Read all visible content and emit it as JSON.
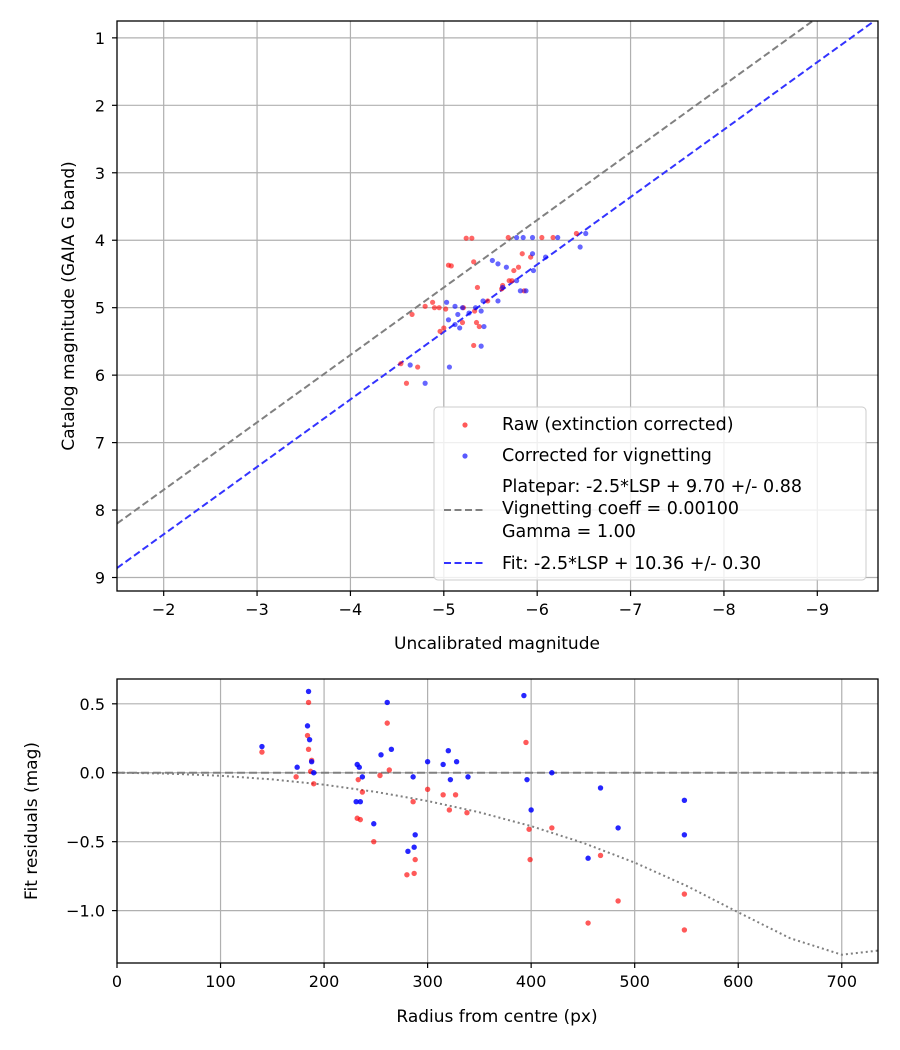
{
  "chart_data": [
    {
      "type": "scatter",
      "xlabel": "Uncalibrated magnitude",
      "ylabel": "Catalog magnitude (GAIA G band)",
      "xlim": [
        -1.5,
        -9.65
      ],
      "ylim": [
        9.2,
        0.75
      ],
      "x_inverted": true,
      "y_inverted": true,
      "grid": true,
      "legend_position": "lower-right",
      "xticks": [
        -2,
        -3,
        -4,
        -5,
        -6,
        -7,
        -8,
        -9
      ],
      "xtick_labels": [
        "−2",
        "−3",
        "−4",
        "−5",
        "−6",
        "−7",
        "−8",
        "−9"
      ],
      "yticks": [
        1,
        2,
        3,
        4,
        5,
        6,
        7,
        8,
        9
      ],
      "ytick_labels": [
        "1",
        "2",
        "3",
        "4",
        "5",
        "6",
        "7",
        "8",
        "9"
      ],
      "series": [
        {
          "name": "Raw (extinction corrected)",
          "kind": "points",
          "color": "#ff0000",
          "points": [
            [
              -5.24,
              3.97
            ],
            [
              -5.3,
              3.97
            ],
            [
              -5.69,
              3.96
            ],
            [
              -6.05,
              3.96
            ],
            [
              -6.17,
              3.96
            ],
            [
              -6.42,
              3.9
            ],
            [
              -5.84,
              4.2
            ],
            [
              -5.93,
              4.25
            ],
            [
              -5.32,
              4.32
            ],
            [
              -5.8,
              4.4
            ],
            [
              -5.75,
              4.45
            ],
            [
              -5.05,
              4.37
            ],
            [
              -5.08,
              4.38
            ],
            [
              -5.7,
              4.6
            ],
            [
              -5.63,
              4.67
            ],
            [
              -5.73,
              4.6
            ],
            [
              -5.36,
              4.7
            ],
            [
              -5.62,
              4.72
            ],
            [
              -5.86,
              4.75
            ],
            [
              -5.47,
              4.9
            ],
            [
              -4.88,
              4.92
            ],
            [
              -4.8,
              4.98
            ],
            [
              -4.9,
              5.0
            ],
            [
              -4.95,
              5.0
            ],
            [
              -5.02,
              5.02
            ],
            [
              -5.21,
              5.0
            ],
            [
              -5.33,
              5.05
            ],
            [
              -4.66,
              5.1
            ],
            [
              -5.35,
              5.22
            ],
            [
              -5.2,
              5.22
            ],
            [
              -5.38,
              5.28
            ],
            [
              -5.0,
              5.3
            ],
            [
              -4.96,
              5.35
            ],
            [
              -5.32,
              5.56
            ],
            [
              -4.54,
              5.83
            ],
            [
              -4.72,
              5.88
            ],
            [
              -4.6,
              6.12
            ]
          ]
        },
        {
          "name": "Corrected for vignetting",
          "kind": "points",
          "color": "#0000ff",
          "points": [
            [
              -5.78,
              3.96
            ],
            [
              -5.85,
              3.96
            ],
            [
              -5.95,
              3.96
            ],
            [
              -6.22,
              3.96
            ],
            [
              -6.52,
              3.9
            ],
            [
              -5.95,
              4.2
            ],
            [
              -6.09,
              4.25
            ],
            [
              -5.96,
              4.45
            ],
            [
              -6.46,
              4.1
            ],
            [
              -5.52,
              4.3
            ],
            [
              -5.58,
              4.35
            ],
            [
              -5.67,
              4.4
            ],
            [
              -5.78,
              4.6
            ],
            [
              -5.63,
              4.7
            ],
            [
              -5.82,
              4.75
            ],
            [
              -5.88,
              4.75
            ],
            [
              -5.42,
              4.9
            ],
            [
              -5.58,
              4.9
            ],
            [
              -5.03,
              4.92
            ],
            [
              -5.12,
              4.98
            ],
            [
              -5.2,
              5.0
            ],
            [
              -5.34,
              5.0
            ],
            [
              -5.4,
              5.05
            ],
            [
              -5.27,
              5.08
            ],
            [
              -5.15,
              5.1
            ],
            [
              -5.05,
              5.18
            ],
            [
              -5.12,
              5.25
            ],
            [
              -5.43,
              5.28
            ],
            [
              -5.17,
              5.3
            ],
            [
              -5.4,
              5.57
            ],
            [
              -4.64,
              5.85
            ],
            [
              -5.06,
              5.88
            ],
            [
              -4.8,
              6.12
            ]
          ]
        },
        {
          "name": "Platepar: -2.5*LSP + 9.70 +/- 0.88\nVignetting coeff = 0.00100\nGamma = 1.00",
          "kind": "line",
          "color": "#808080",
          "slope": 1.0,
          "intercept": 9.7,
          "label_lines": [
            "Platepar: -2.5*LSP + 9.70 +/- 0.88",
            "Vignetting coeff = 0.00100",
            "Gamma = 1.00"
          ]
        },
        {
          "name": "Fit: -2.5*LSP + 10.36 +/- 0.30",
          "kind": "line",
          "color": "#3333ff",
          "slope": 1.0,
          "intercept": 10.36
        }
      ]
    },
    {
      "type": "scatter",
      "xlabel": "Radius from centre (px)",
      "ylabel": "Fit residuals (mag)",
      "xlim": [
        0,
        735
      ],
      "ylim": [
        -1.38,
        0.68
      ],
      "grid": true,
      "xticks": [
        0,
        100,
        200,
        300,
        400,
        500,
        600,
        700
      ],
      "xtick_labels": [
        "0",
        "100",
        "200",
        "300",
        "400",
        "500",
        "600",
        "700"
      ],
      "yticks": [
        0.5,
        0.0,
        -0.5,
        -1.0
      ],
      "ytick_labels": [
        "0.5",
        "0.0",
        "−0.5",
        "−1.0"
      ],
      "series": [
        {
          "name": "Raw residuals",
          "kind": "points",
          "color": "#ff0000",
          "points": [
            [
              140,
              0.15
            ],
            [
              173,
              -0.03
            ],
            [
              185,
              0.51
            ],
            [
              184,
              0.27
            ],
            [
              185,
              0.17
            ],
            [
              188,
              0.09
            ],
            [
              187,
              0.01
            ],
            [
              190,
              -0.08
            ],
            [
              233,
              -0.05
            ],
            [
              232,
              -0.33
            ],
            [
              235,
              -0.34
            ],
            [
              237,
              -0.14
            ],
            [
              248,
              -0.5
            ],
            [
              254,
              -0.02
            ],
            [
              261,
              0.36
            ],
            [
              263,
              0.02
            ],
            [
              280,
              -0.74
            ],
            [
              286,
              -0.21
            ],
            [
              287,
              -0.73
            ],
            [
              288,
              -0.63
            ],
            [
              300,
              -0.12
            ],
            [
              315,
              -0.16
            ],
            [
              321,
              -0.27
            ],
            [
              327,
              -0.16
            ],
            [
              338,
              -0.29
            ],
            [
              395,
              0.22
            ],
            [
              398,
              -0.41
            ],
            [
              399,
              -0.63
            ],
            [
              420,
              -0.4
            ],
            [
              455,
              -1.09
            ],
            [
              467,
              -0.6
            ],
            [
              484,
              -0.93
            ],
            [
              548,
              -0.88
            ],
            [
              548,
              -1.14
            ]
          ]
        },
        {
          "name": "Vignetting-corrected residuals",
          "kind": "points",
          "color": "#0000ff",
          "points": [
            [
              140,
              0.19
            ],
            [
              174,
              0.04
            ],
            [
              185,
              0.59
            ],
            [
              184,
              0.34
            ],
            [
              186,
              0.24
            ],
            [
              188,
              0.08
            ],
            [
              190,
              0.0
            ],
            [
              232,
              0.06
            ],
            [
              234,
              0.04
            ],
            [
              231,
              -0.21
            ],
            [
              235,
              -0.21
            ],
            [
              237,
              -0.03
            ],
            [
              248,
              -0.37
            ],
            [
              255,
              0.13
            ],
            [
              261,
              0.51
            ],
            [
              265,
              0.17
            ],
            [
              281,
              -0.57
            ],
            [
              286,
              -0.03
            ],
            [
              288,
              -0.45
            ],
            [
              287,
              -0.54
            ],
            [
              300,
              0.08
            ],
            [
              315,
              0.06
            ],
            [
              320,
              0.16
            ],
            [
              322,
              -0.05
            ],
            [
              328,
              0.08
            ],
            [
              339,
              -0.03
            ],
            [
              393,
              0.56
            ],
            [
              396,
              -0.05
            ],
            [
              400,
              -0.27
            ],
            [
              420,
              0.0
            ],
            [
              455,
              -0.62
            ],
            [
              467,
              -0.11
            ],
            [
              484,
              -0.4
            ],
            [
              548,
              -0.2
            ],
            [
              548,
              -0.45
            ]
          ]
        },
        {
          "name": "Zero line",
          "kind": "hline",
          "color": "#808080",
          "value": 0.0
        },
        {
          "name": "Vignetting model",
          "kind": "curve",
          "color": "#808080",
          "x": [
            0,
            50,
            100,
            150,
            200,
            250,
            300,
            350,
            400,
            450,
            500,
            550,
            600,
            650,
            700,
            735
          ],
          "y": [
            0.0,
            -0.006,
            -0.022,
            -0.048,
            -0.087,
            -0.139,
            -0.205,
            -0.287,
            -0.387,
            -0.508,
            -0.652,
            -0.82,
            -1.012,
            -1.2,
            -1.32,
            -1.29
          ]
        }
      ]
    }
  ]
}
